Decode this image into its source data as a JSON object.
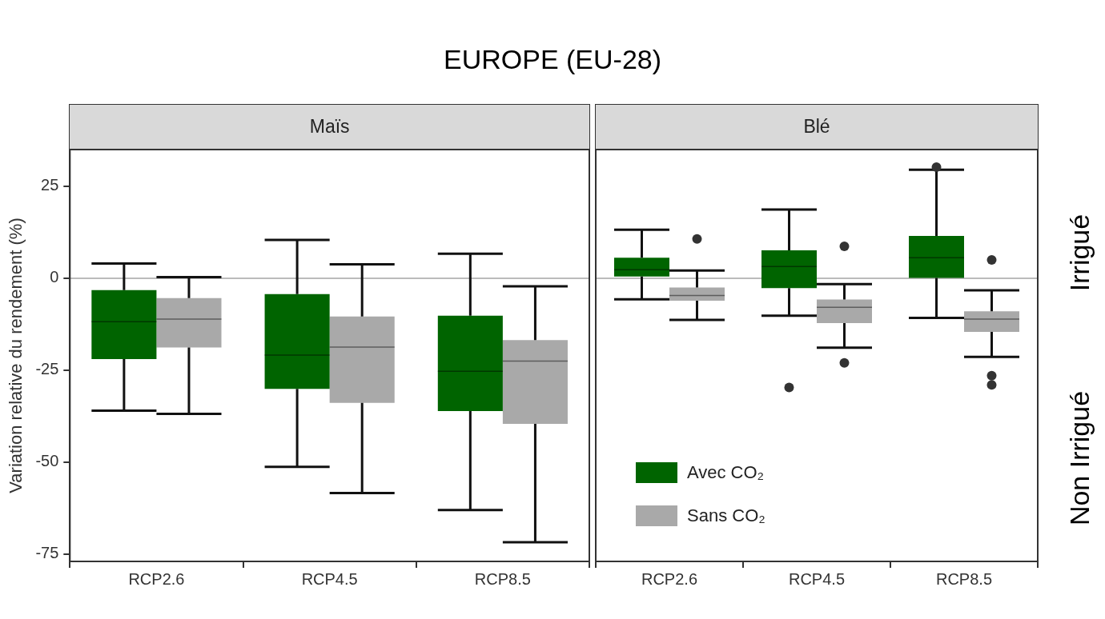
{
  "chart_data": [
    {
      "type": "box",
      "title": "Maïs",
      "annotations": [
        "EUROPE (EU-28)"
      ],
      "ylabel": "Variation relative du rendement (%)",
      "categories": [
        "RCP2.6",
        "RCP4.5",
        "RCP8.5"
      ],
      "ylim": [
        -77,
        35
      ],
      "yticks": [
        -75,
        -50,
        -25,
        0,
        25
      ],
      "ref_lines": [
        {
          "axis": "y",
          "value": 0,
          "color": "#bbbbbb"
        }
      ],
      "series": [
        {
          "color": "#006400",
          "boxes": [
            {
              "low": -36,
              "q1": -22,
              "median": -11.8,
              "q3": -3.2,
              "high": 4
            },
            {
              "low": -51.3,
              "q1": -30.1,
              "median": -20.9,
              "q3": -4.3,
              "high": 10.4
            },
            {
              "low": -63,
              "q1": -36.1,
              "median": -25.3,
              "q3": -10.2,
              "high": 6.7
            }
          ]
        },
        {
          "color": "#a9a9a9",
          "boxes": [
            {
              "low": -36.9,
              "q1": -18.8,
              "median": -11.1,
              "q3": -5.4,
              "high": 0.3
            },
            {
              "low": -58.4,
              "q1": -33.9,
              "median": -18.7,
              "q3": -10.4,
              "high": 3.8
            },
            {
              "low": -71.8,
              "q1": -39.6,
              "median": -22.5,
              "q3": -16.8,
              "high": -2.2
            }
          ]
        }
      ]
    },
    {
      "type": "box",
      "title": "Blé",
      "annotations": [
        "Irrigué",
        "Non Irrigué"
      ],
      "categories": [
        "RCP2.6",
        "RCP4.5",
        "RCP8.5"
      ],
      "ylim": [
        -77,
        35
      ],
      "yticks": [
        -75,
        -50,
        -25,
        0,
        25
      ],
      "tick_labels": "x",
      "legend": "bottom left",
      "ref_lines": [
        {
          "axis": "y",
          "value": 0,
          "color": "#bbbbbb"
        }
      ],
      "series": [
        {
          "name": "Avec CO₂",
          "color": "#006400",
          "boxes": [
            {
              "low": -5.7,
              "q1": 0.5,
              "median": 2.3,
              "q3": 5.6,
              "high": 13.2
            },
            {
              "low": -10.2,
              "q1": -2.7,
              "median": 3.2,
              "q3": 7.6,
              "high": 18.7,
              "outliers": [
                -29.7
              ]
            },
            {
              "low": -10.8,
              "q1": 0.1,
              "median": 5.6,
              "q3": 11.5,
              "high": 29.5,
              "outliers": [
                30.2
              ]
            }
          ]
        },
        {
          "name": "Sans CO₂",
          "color": "#a9a9a9",
          "boxes": [
            {
              "low": -11.3,
              "q1": -6.1,
              "median": -4.7,
              "q3": -2.5,
              "high": 2.1,
              "outliers": [
                10.7
              ]
            },
            {
              "low": -18.9,
              "q1": -12.2,
              "median": -7.9,
              "q3": -5.8,
              "high": -1.6,
              "outliers": [
                8.7,
                -23
              ]
            },
            {
              "low": -21.4,
              "q1": -14.6,
              "median": -11.1,
              "q3": -9,
              "high": -3.3,
              "outliers": [
                5,
                -26.5,
                -29
              ]
            }
          ]
        }
      ]
    }
  ]
}
